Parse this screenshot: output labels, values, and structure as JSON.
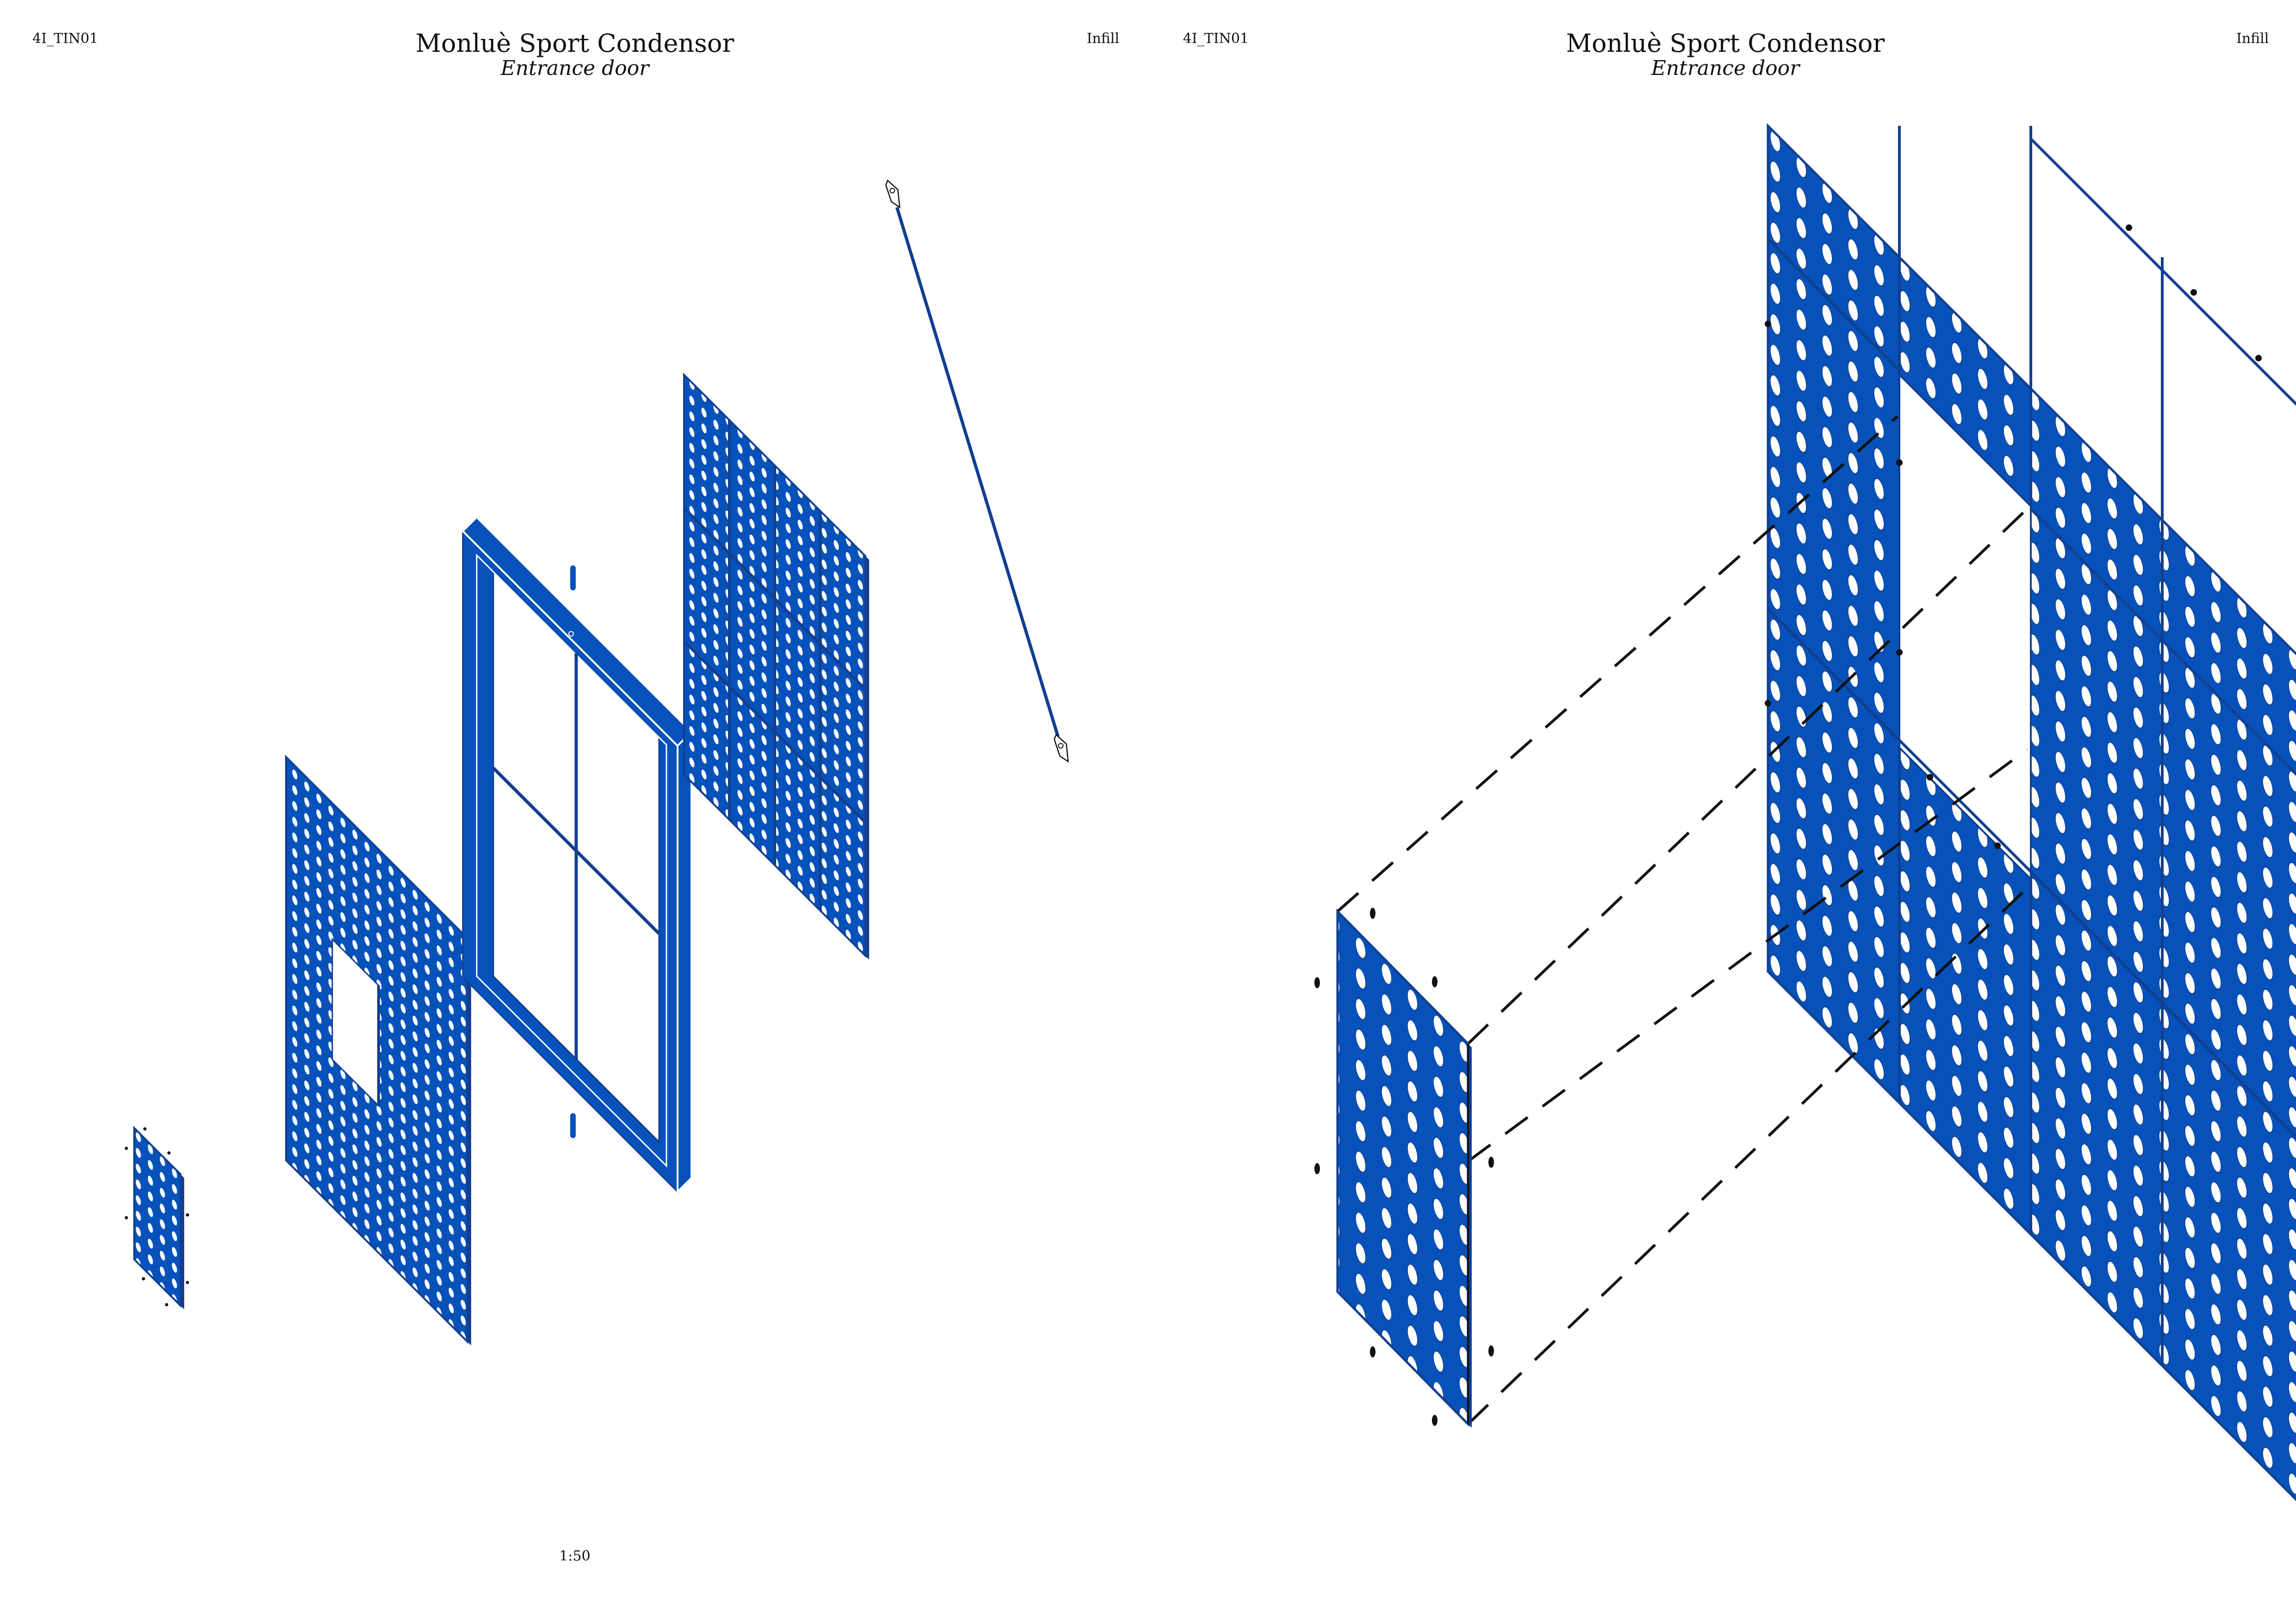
{
  "colors": {
    "blue": "#0652BA",
    "dark_blue": "#123F8F",
    "line": "#111111",
    "paper": "#ffffff"
  },
  "left_page": {
    "code": "4I_TIN01",
    "title": "Monluè Sport Condensor",
    "subtitle": "Entrance door",
    "category": "Infill",
    "scale": "1:50"
  },
  "right_page": {
    "code": "4I_TIN01",
    "title": "Monluè Sport Condensor",
    "subtitle": "Entrance door",
    "category": "Infill"
  }
}
